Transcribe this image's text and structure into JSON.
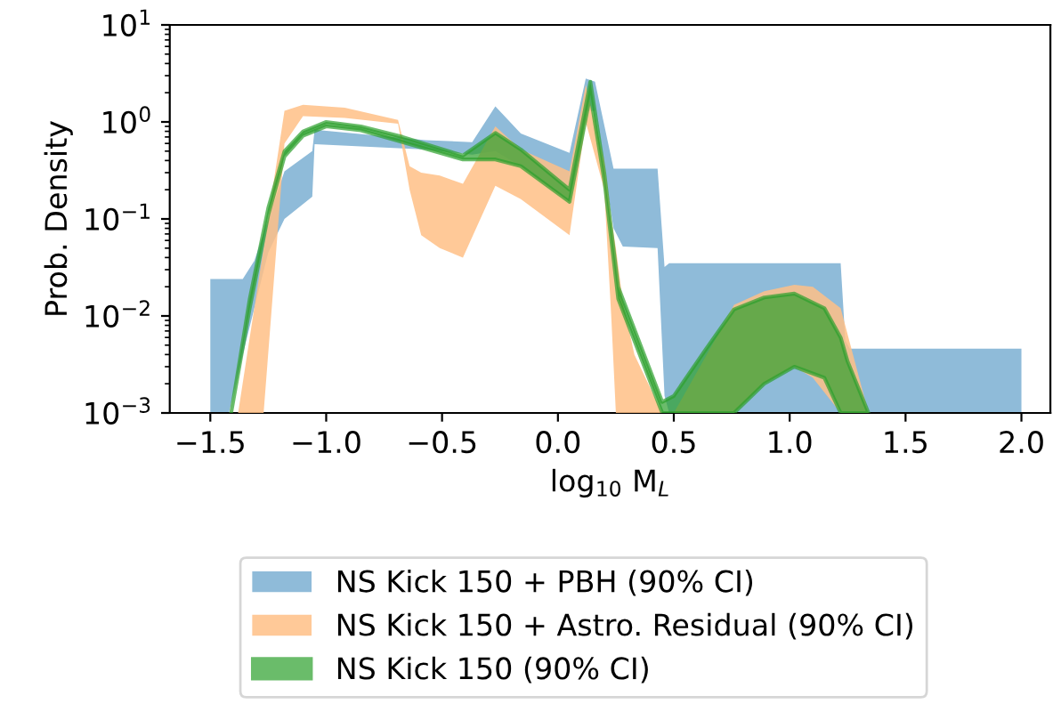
{
  "chart_data": {
    "type": "area",
    "xlabel": "log$_{10}$ M$_{L}$",
    "ylabel": "Prob. Density",
    "log": "y",
    "legend": "bottom",
    "grid": false,
    "xlim": [
      -1.675,
      2.125
    ],
    "ylim": [
      0.001,
      10
    ],
    "xticks": [
      {
        "value": -1.5,
        "label": "−1.5"
      },
      {
        "value": -1.0,
        "label": "−1.0"
      },
      {
        "value": -0.5,
        "label": "−0.5"
      },
      {
        "value": 0.0,
        "label": "0.0"
      },
      0.5,
      {
        "value": 1.0,
        "label": "1.0"
      },
      1.5,
      {
        "value": 2.0,
        "label": "2.0"
      }
    ],
    "yticks": [
      {
        "value": 0.001,
        "label": "10$^{−3}$"
      },
      {
        "value": 0.01,
        "label": "10$^{−2}$"
      },
      {
        "value": 0.1,
        "label": "10$^{−1}$"
      },
      {
        "value": 1,
        "label": "10$^{0}$"
      },
      {
        "value": 10,
        "label": "10$^{1}$"
      }
    ],
    "series": [
      {
        "name": "NS Kick 150 + PBH (90% CI)",
        "color": "#8fbbd9",
        "x": [
          -1.5,
          -1.42,
          -1.36,
          -1.31,
          -1.25,
          -1.18,
          -1.06,
          -1.05,
          -0.57,
          -0.37,
          -0.27,
          -0.16,
          0.05,
          0.12,
          0.16,
          0.24,
          0.28,
          0.43,
          0.46,
          0.48,
          1.22,
          1.24,
          1.26,
          2.0
        ],
        "values": [
          null,
          null,
          null,
          null,
          null,
          null,
          null,
          null,
          null,
          null,
          null,
          null,
          null,
          null,
          null,
          null,
          null,
          null,
          null,
          null,
          null,
          null,
          null,
          null
        ],
        "upper": [
          0.024,
          0.024,
          0.024,
          0.037,
          0.1,
          0.31,
          0.5,
          0.83,
          0.65,
          0.62,
          1.45,
          0.76,
          0.48,
          2.8,
          2.6,
          0.33,
          0.33,
          0.33,
          0.032,
          0.035,
          0.035,
          0.0056,
          0.0046,
          0.0046
        ],
        "lower": [
          0.001,
          0.001,
          0.004,
          0.012,
          0.045,
          0.1,
          0.17,
          0.59,
          0.52,
          0.46,
          0.5,
          0.35,
          0.15,
          1.3,
          1.3,
          0.08,
          0.052,
          0.05,
          0.0015,
          0.001,
          0.001,
          0.001,
          0.001,
          0.001
        ]
      },
      {
        "name": "NS Kick 150 + Astro. Residual (90% CI)",
        "color": "#ffbf86",
        "x": [
          -1.38,
          -1.33,
          -1.27,
          -1.18,
          -1.1,
          -0.92,
          -0.69,
          -0.64,
          -0.59,
          -0.51,
          -0.41,
          -0.27,
          -0.16,
          0.05,
          0.12,
          0.2,
          0.23,
          0.25,
          0.28,
          0.33,
          0.45,
          0.5,
          0.64,
          0.76,
          0.89,
          1.02,
          1.1,
          1.22,
          1.34
        ],
        "values": [
          null,
          null,
          null,
          null,
          null,
          null,
          null,
          null,
          null,
          null,
          null,
          null,
          null,
          null,
          null,
          null,
          null,
          null,
          null,
          null,
          null,
          null,
          null,
          null,
          null,
          null,
          null,
          null,
          null
        ],
        "upper": [
          0.001,
          0.006,
          0.05,
          1.3,
          1.5,
          1.4,
          1.05,
          0.35,
          0.3,
          0.28,
          0.23,
          0.9,
          0.52,
          0.31,
          2.4,
          0.4,
          0.1,
          0.05,
          0.014,
          0.004,
          0.001,
          0.001,
          0.0039,
          0.013,
          0.018,
          0.021,
          0.02,
          0.012,
          0.001
        ],
        "lower": [
          0.001,
          0.001,
          0.001,
          0.6,
          1.15,
          1.1,
          0.96,
          0.2,
          0.068,
          0.05,
          0.04,
          0.22,
          0.16,
          0.068,
          1.0,
          0.2,
          0.01,
          0.001,
          0.001,
          0.001,
          0.001,
          0.001,
          0.001,
          0.001,
          0.002,
          0.003,
          0.0023,
          0.001,
          0.001
        ]
      },
      {
        "name": "NS Kick 150 (90% CI)",
        "color": "#2ca02c",
        "x": [
          -1.41,
          -1.33,
          -1.25,
          -1.18,
          -1.1,
          -1.0,
          -0.85,
          -0.67,
          -0.41,
          -0.27,
          -0.16,
          0.05,
          0.14,
          0.2,
          0.26,
          0.45,
          0.5,
          0.64,
          0.76,
          0.89,
          1.02,
          1.15,
          1.22,
          1.25,
          1.34
        ],
        "values": [
          null,
          null,
          null,
          null,
          null,
          null,
          null,
          null,
          null,
          null,
          null,
          null,
          null,
          null,
          null,
          null,
          null,
          null,
          null,
          null,
          null,
          null,
          null,
          null,
          null
        ],
        "upper": [
          0.001,
          0.015,
          0.13,
          0.5,
          0.8,
          1.0,
          0.9,
          0.7,
          0.45,
          0.77,
          0.52,
          0.2,
          2.6,
          0.3,
          0.02,
          0.0013,
          0.0015,
          0.0046,
          0.0117,
          0.0155,
          0.017,
          0.012,
          0.006,
          0.0034,
          0.001
        ],
        "lower": [
          0.001,
          0.012,
          0.11,
          0.44,
          0.72,
          0.9,
          0.82,
          0.62,
          0.41,
          0.41,
          0.35,
          0.15,
          1.9,
          0.25,
          0.015,
          0.001,
          0.001,
          0.001,
          0.001,
          0.002,
          0.003,
          0.0023,
          0.001,
          0.001,
          0.001
        ]
      }
    ]
  }
}
